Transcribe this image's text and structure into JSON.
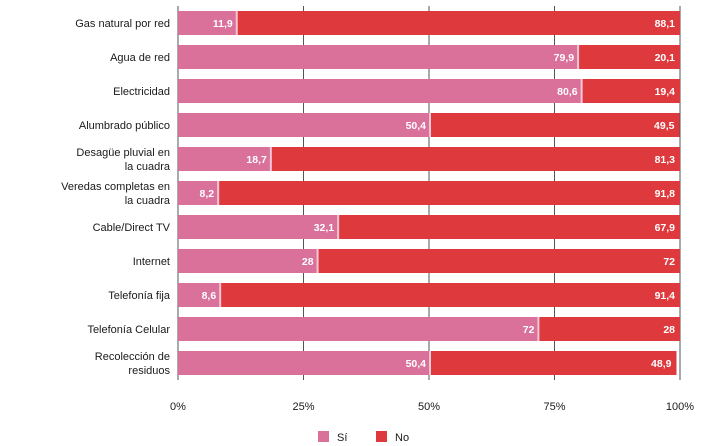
{
  "chart_data": {
    "type": "bar",
    "orientation": "horizontal",
    "stacked": true,
    "categories": [
      "Gas natural por red",
      "Agua de red",
      "Electricidad",
      "Alumbrado público",
      "Desagüe pluvial en la cuadra",
      "Veredas completas en la cuadra",
      "Cable/Direct TV",
      "Internet",
      "Telefonía fija",
      "Telefonía Celular",
      "Recolección de residuos"
    ],
    "series": [
      {
        "name": "Sí",
        "color": "#d9719b",
        "values": [
          11.9,
          79.9,
          80.6,
          50.4,
          18.7,
          8.2,
          32.1,
          28,
          8.6,
          72,
          50.4
        ],
        "labels": [
          "11,9",
          "79,9",
          "80,6",
          "50,4",
          "18,7",
          "8,2",
          "32,1",
          "28",
          "8,6",
          "72",
          "50,4"
        ]
      },
      {
        "name": "No",
        "color": "#de3a3e",
        "values": [
          88.1,
          20.1,
          19.4,
          49.5,
          81.3,
          91.8,
          67.9,
          72,
          91.4,
          28,
          48.9
        ],
        "labels": [
          "88,1",
          "20,1",
          "19,4",
          "49,5",
          "81,3",
          "91,8",
          "67,9",
          "72",
          "91,4",
          "28",
          "48,9"
        ]
      }
    ],
    "x_ticks": [
      "0%",
      "25%",
      "50%",
      "75%",
      "100%"
    ],
    "xlim": [
      0,
      100
    ],
    "grid": true,
    "legend_position": "bottom-center"
  }
}
